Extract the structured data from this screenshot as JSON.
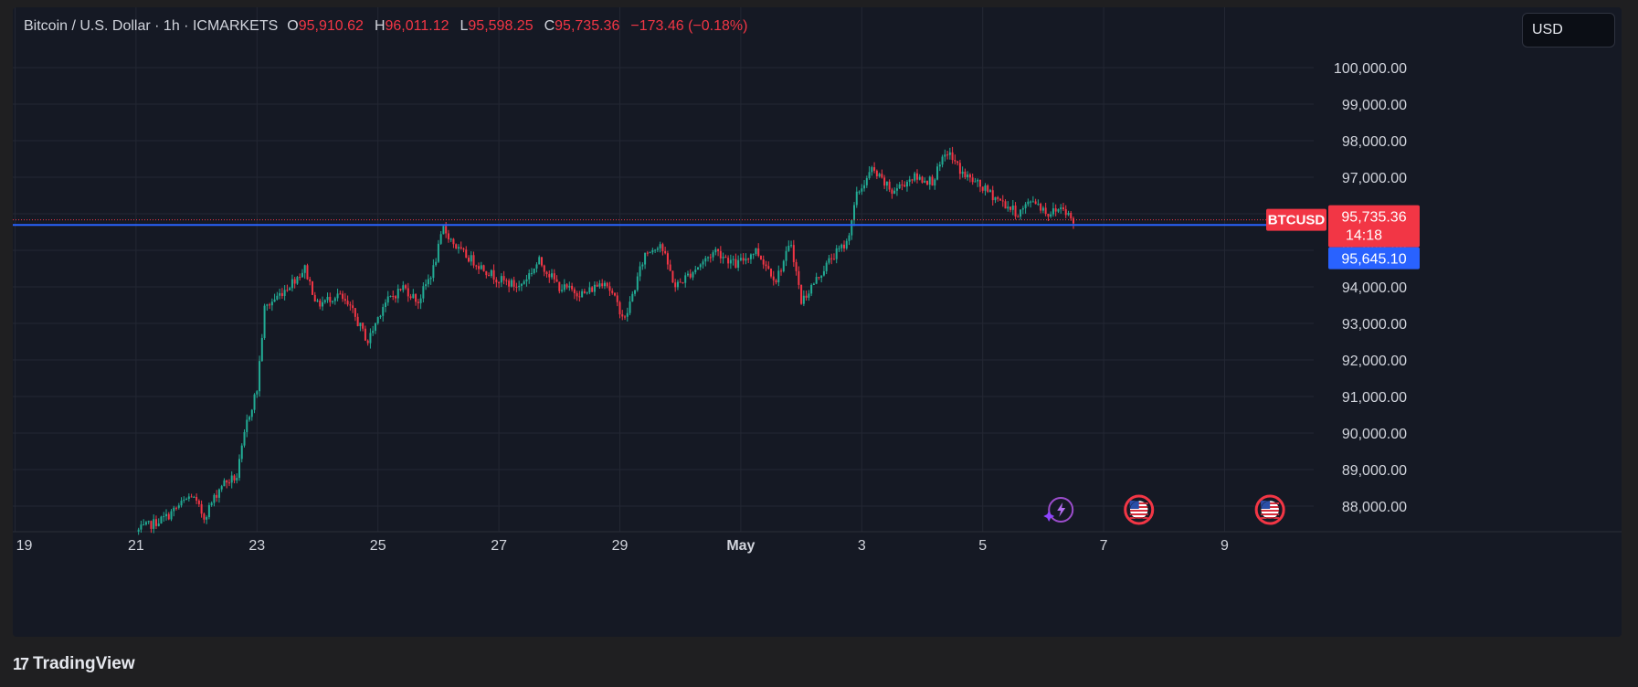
{
  "legend": {
    "symbol": "Bitcoin / U.S. Dollar · 1h · ICMARKETS",
    "o_label": "O",
    "o_value": "95,910.62",
    "h_label": "H",
    "h_value": "96,011.12",
    "l_label": "L",
    "l_value": "95,598.25",
    "c_label": "C",
    "c_value": "95,735.36",
    "change": "−173.46 (−0.18%)"
  },
  "currency_button": "USD",
  "branding": {
    "logo_text": "TradingView",
    "logo_mark": "17"
  },
  "colors": {
    "up": "#22ab94",
    "down": "#f23645",
    "blue_line": "#2962ff",
    "grid": "#232733",
    "axis_text": "#d1d4dc",
    "price_tag_red": "#f23645",
    "price_tag_blue": "#2962ff"
  },
  "chart_data": {
    "type": "candlestick",
    "y_ticks": [
      "100,000.00",
      "99,000.00",
      "98,000.00",
      "97,000.00",
      "96,000.00",
      "95,000.00",
      "94,000.00",
      "93,000.00",
      "92,000.00",
      "91,000.00",
      "90,000.00",
      "89,000.00",
      "88,000.00"
    ],
    "y_tick_values": [
      100000,
      99000,
      98000,
      97000,
      96000,
      95000,
      94000,
      93000,
      92000,
      91000,
      90000,
      89000,
      88000
    ],
    "x_ticks": [
      "19",
      "21",
      "23",
      "25",
      "27",
      "29",
      "May",
      "3",
      "5",
      "7",
      "9"
    ],
    "ylim": [
      87500,
      101000
    ],
    "current_price": 95735.36,
    "current_price_label": "95,735.36",
    "countdown": "14:18",
    "symbol_tag": "BTCUSD",
    "line_price": 95645.1,
    "line_price_label": "95,645.10",
    "anchors": [
      {
        "date": "Apr 21 00:00",
        "price": 87300
      },
      {
        "date": "Apr 21 12:00",
        "price": 87700
      },
      {
        "date": "Apr 21 22:00",
        "price": 88300
      },
      {
        "date": "Apr 22 03:00",
        "price": 87700
      },
      {
        "date": "Apr 22 10:00",
        "price": 88600
      },
      {
        "date": "Apr 22 16:00",
        "price": 88800
      },
      {
        "date": "Apr 22 20:00",
        "price": 90300
      },
      {
        "date": "Apr 23 00:00",
        "price": 91200
      },
      {
        "date": "Apr 23 03:00",
        "price": 93400
      },
      {
        "date": "Apr 23 12:00",
        "price": 94000
      },
      {
        "date": "Apr 23 19:00",
        "price": 94500
      },
      {
        "date": "Apr 24 00:00",
        "price": 93500
      },
      {
        "date": "Apr 24 08:00",
        "price": 93800
      },
      {
        "date": "Apr 24 14:00",
        "price": 93300
      },
      {
        "date": "Apr 24 20:00",
        "price": 92500
      },
      {
        "date": "Apr 25 02:00",
        "price": 93500
      },
      {
        "date": "Apr 25 10:00",
        "price": 94000
      },
      {
        "date": "Apr 25 16:00",
        "price": 93600
      },
      {
        "date": "Apr 25 22:00",
        "price": 94500
      },
      {
        "date": "Apr 26 02:00",
        "price": 95600
      },
      {
        "date": "Apr 26 08:00",
        "price": 95000
      },
      {
        "date": "Apr 26 16:00",
        "price": 94600
      },
      {
        "date": "Apr 27 00:00",
        "price": 94200
      },
      {
        "date": "Apr 27 08:00",
        "price": 94000
      },
      {
        "date": "Apr 27 16:00",
        "price": 94700
      },
      {
        "date": "Apr 28 00:00",
        "price": 94000
      },
      {
        "date": "Apr 28 10:00",
        "price": 93800
      },
      {
        "date": "Apr 28 18:00",
        "price": 94200
      },
      {
        "date": "Apr 29 02:00",
        "price": 93100
      },
      {
        "date": "Apr 29 10:00",
        "price": 94900
      },
      {
        "date": "Apr 29 16:00",
        "price": 95200
      },
      {
        "date": "Apr 29 22:00",
        "price": 94000
      },
      {
        "date": "Apr 30 06:00",
        "price": 94500
      },
      {
        "date": "Apr 30 14:00",
        "price": 95000
      },
      {
        "date": "Apr 30 22:00",
        "price": 94600
      },
      {
        "date": "May 01 06:00",
        "price": 95000
      },
      {
        "date": "May 01 14:00",
        "price": 94200
      },
      {
        "date": "May 01 20:00",
        "price": 95200
      },
      {
        "date": "May 02 00:00",
        "price": 93600
      },
      {
        "date": "May 02 06:00",
        "price": 94200
      },
      {
        "date": "May 02 12:00",
        "price": 94800
      },
      {
        "date": "May 02 18:00",
        "price": 95200
      },
      {
        "date": "May 02 22:00",
        "price": 96500
      },
      {
        "date": "May 03 04:00",
        "price": 97200
      },
      {
        "date": "May 03 12:00",
        "price": 96600
      },
      {
        "date": "May 03 20:00",
        "price": 97000
      },
      {
        "date": "May 04 04:00",
        "price": 96900
      },
      {
        "date": "May 04 10:00",
        "price": 97700
      },
      {
        "date": "May 04 16:00",
        "price": 97100
      },
      {
        "date": "May 04 22:00",
        "price": 96800
      },
      {
        "date": "May 05 06:00",
        "price": 96400
      },
      {
        "date": "May 05 14:00",
        "price": 96000
      },
      {
        "date": "May 05 20:00",
        "price": 96400
      },
      {
        "date": "May 06 02:00",
        "price": 96000
      },
      {
        "date": "May 06 08:00",
        "price": 96200
      },
      {
        "date": "May 06 12:00",
        "price": 95735.36
      }
    ],
    "events": [
      {
        "type": "bolt-event-icon",
        "date": "May 06 07:00"
      },
      {
        "type": "us-flag-event-icon",
        "date": "May 07 14:00"
      },
      {
        "type": "us-flag-event-icon",
        "date": "May 09 18:00"
      }
    ]
  }
}
